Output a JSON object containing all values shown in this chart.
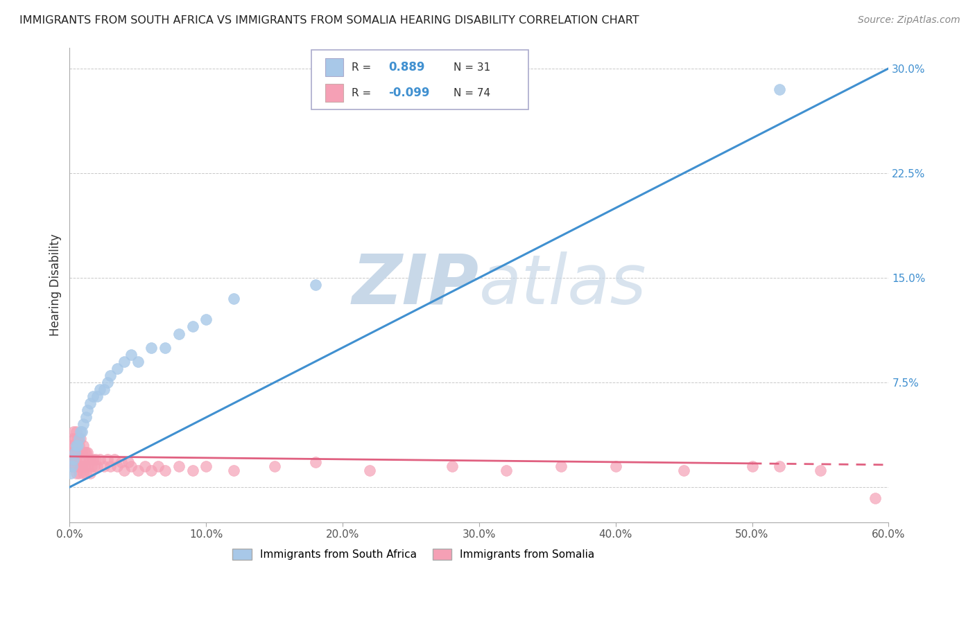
{
  "title": "IMMIGRANTS FROM SOUTH AFRICA VS IMMIGRANTS FROM SOMALIA HEARING DISABILITY CORRELATION CHART",
  "source": "Source: ZipAtlas.com",
  "ylabel": "Hearing Disability",
  "xlim": [
    0.0,
    0.6
  ],
  "ylim": [
    -0.025,
    0.315
  ],
  "xticks": [
    0.0,
    0.1,
    0.2,
    0.3,
    0.4,
    0.5,
    0.6
  ],
  "xtick_labels": [
    "0.0%",
    "10.0%",
    "20.0%",
    "30.0%",
    "40.0%",
    "50.0%",
    "60.0%"
  ],
  "yticks": [
    0.0,
    0.075,
    0.15,
    0.225,
    0.3
  ],
  "ytick_labels": [
    "",
    "7.5%",
    "15.0%",
    "22.5%",
    "30.0%"
  ],
  "south_africa_R": 0.889,
  "south_africa_N": 31,
  "somalia_R": -0.099,
  "somalia_N": 74,
  "south_africa_color": "#a8c8e8",
  "somalia_color": "#f5a0b5",
  "south_africa_line_color": "#4090d0",
  "somalia_line_color": "#e06080",
  "background_color": "#ffffff",
  "grid_color": "#c8c8c8",
  "watermark_color": "#c8d8e8",
  "legend_box_color": "#e8e8f0",
  "south_africa_x": [
    0.001,
    0.002,
    0.003,
    0.004,
    0.005,
    0.006,
    0.007,
    0.008,
    0.009,
    0.01,
    0.012,
    0.013,
    0.015,
    0.017,
    0.02,
    0.022,
    0.025,
    0.028,
    0.03,
    0.035,
    0.04,
    0.045,
    0.05,
    0.06,
    0.07,
    0.08,
    0.09,
    0.1,
    0.12,
    0.18,
    0.52
  ],
  "south_africa_y": [
    0.01,
    0.015,
    0.02,
    0.025,
    0.03,
    0.03,
    0.035,
    0.04,
    0.04,
    0.045,
    0.05,
    0.055,
    0.06,
    0.065,
    0.065,
    0.07,
    0.07,
    0.075,
    0.08,
    0.085,
    0.09,
    0.095,
    0.09,
    0.1,
    0.1,
    0.11,
    0.115,
    0.12,
    0.135,
    0.145,
    0.285
  ],
  "somalia_x": [
    0.001,
    0.001,
    0.002,
    0.002,
    0.002,
    0.003,
    0.003,
    0.003,
    0.004,
    0.004,
    0.004,
    0.005,
    0.005,
    0.005,
    0.005,
    0.006,
    0.006,
    0.006,
    0.007,
    0.007,
    0.007,
    0.008,
    0.008,
    0.008,
    0.009,
    0.009,
    0.01,
    0.01,
    0.01,
    0.011,
    0.011,
    0.012,
    0.012,
    0.013,
    0.013,
    0.014,
    0.015,
    0.015,
    0.016,
    0.017,
    0.018,
    0.019,
    0.02,
    0.022,
    0.025,
    0.028,
    0.03,
    0.033,
    0.035,
    0.038,
    0.04,
    0.043,
    0.045,
    0.05,
    0.055,
    0.06,
    0.065,
    0.07,
    0.08,
    0.09,
    0.1,
    0.12,
    0.15,
    0.18,
    0.22,
    0.28,
    0.32,
    0.36,
    0.4,
    0.45,
    0.5,
    0.52,
    0.55,
    0.59
  ],
  "somalia_y": [
    0.02,
    0.03,
    0.015,
    0.025,
    0.035,
    0.02,
    0.03,
    0.04,
    0.015,
    0.025,
    0.035,
    0.01,
    0.02,
    0.03,
    0.04,
    0.015,
    0.025,
    0.035,
    0.01,
    0.02,
    0.03,
    0.015,
    0.025,
    0.035,
    0.015,
    0.025,
    0.01,
    0.02,
    0.03,
    0.015,
    0.025,
    0.01,
    0.025,
    0.015,
    0.025,
    0.02,
    0.01,
    0.02,
    0.015,
    0.02,
    0.015,
    0.02,
    0.015,
    0.02,
    0.015,
    0.02,
    0.015,
    0.02,
    0.015,
    0.018,
    0.012,
    0.018,
    0.015,
    0.012,
    0.015,
    0.012,
    0.015,
    0.012,
    0.015,
    0.012,
    0.015,
    0.012,
    0.015,
    0.018,
    0.012,
    0.015,
    0.012,
    0.015,
    0.015,
    0.012,
    0.015,
    0.015,
    0.012,
    -0.008
  ],
  "sa_line_x0": 0.0,
  "sa_line_y0": 0.0,
  "sa_line_x1": 0.6,
  "sa_line_y1": 0.3,
  "so_line_x0": 0.0,
  "so_line_y0": 0.022,
  "so_line_x1": 0.6,
  "so_line_y1": 0.016
}
